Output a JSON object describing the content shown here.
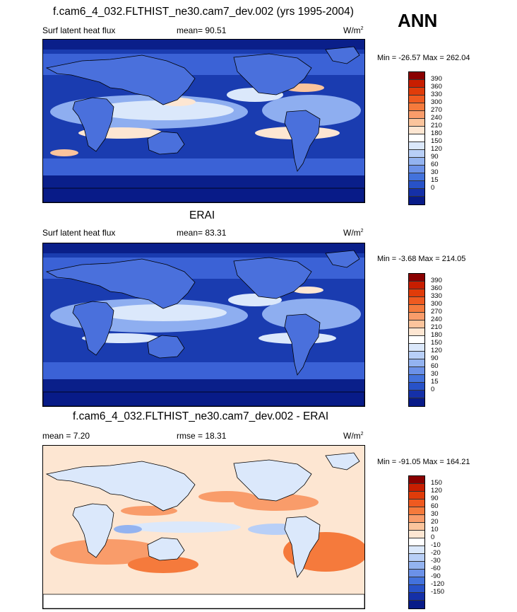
{
  "season": "ANN",
  "panels": [
    {
      "title": "f.cam6_4_032.FLTHIST_ne30.cam7_dev.002 (yrs 1995-2004)",
      "left_label": "Surf latent heat flux",
      "mid_label": "mean=  90.51",
      "units": "W/m",
      "units_sup": "2",
      "minmax": "Min = -26.57 Max = 262.04",
      "colorbar": {
        "labels": [
          "390",
          "360",
          "330",
          "300",
          "270",
          "240",
          "210",
          "180",
          "150",
          "120",
          "90",
          "60",
          "30",
          "15",
          "0"
        ],
        "colors": [
          "#8a0000",
          "#c81e00",
          "#e03c0a",
          "#ef5a20",
          "#f57a3c",
          "#f99c6a",
          "#fbc49c",
          "#fde6d2",
          "#ffffff",
          "#dbe8fb",
          "#b8cff7",
          "#93b3f0",
          "#6b91e8",
          "#4372dc",
          "#2852c8",
          "#1530a8",
          "#081b88"
        ]
      }
    },
    {
      "title": "ERAI",
      "left_label": "Surf latent heat flux",
      "mid_label": "mean=  83.31",
      "units": "W/m",
      "units_sup": "2",
      "minmax": "Min =  -3.68 Max = 214.05",
      "colorbar": {
        "labels": [
          "390",
          "360",
          "330",
          "300",
          "270",
          "240",
          "210",
          "180",
          "150",
          "120",
          "90",
          "60",
          "30",
          "15",
          "0"
        ],
        "colors": [
          "#8a0000",
          "#c81e00",
          "#e03c0a",
          "#ef5a20",
          "#f57a3c",
          "#f99c6a",
          "#fbc49c",
          "#fde6d2",
          "#ffffff",
          "#dbe8fb",
          "#b8cff7",
          "#93b3f0",
          "#6b91e8",
          "#4372dc",
          "#2852c8",
          "#1530a8",
          "#081b88"
        ]
      }
    },
    {
      "title": "f.cam6_4_032.FLTHIST_ne30.cam7_dev.002 - ERAI",
      "left_label": "mean =   7.20",
      "mid_label": "rmse =  18.31",
      "units": "W/m",
      "units_sup": "2",
      "minmax": "Min = -91.05 Max = 164.21",
      "colorbar": {
        "labels": [
          "150",
          "120",
          "90",
          "60",
          "30",
          "20",
          "10",
          "0",
          "-10",
          "-20",
          "-30",
          "-60",
          "-90",
          "-120",
          "-150"
        ],
        "colors": [
          "#8a0000",
          "#c81e00",
          "#e03c0a",
          "#ef5a20",
          "#f57a3c",
          "#f99c6a",
          "#fbc49c",
          "#fde6d2",
          "#ffffff",
          "#dbe8fb",
          "#b8cff7",
          "#93b3f0",
          "#6b91e8",
          "#4372dc",
          "#2852c8",
          "#1530a8",
          "#081b88"
        ]
      }
    }
  ]
}
